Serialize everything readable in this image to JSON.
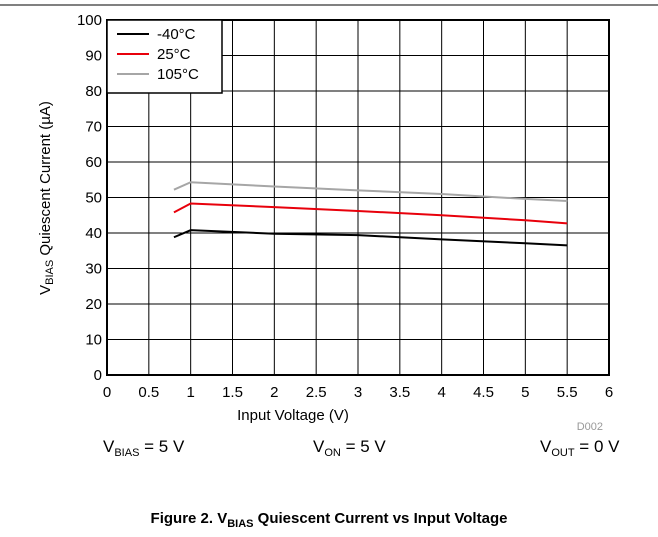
{
  "chart_data": {
    "type": "line",
    "x": [
      0.8,
      1,
      2,
      3,
      4,
      5,
      5.5
    ],
    "series": [
      {
        "name": "-40°C",
        "color": "#000000",
        "values": [
          38.8,
          40.8,
          39.8,
          39.4,
          38.2,
          37.1,
          36.5
        ]
      },
      {
        "name": "25°C",
        "color": "#e8000b",
        "values": [
          45.8,
          48.3,
          47.3,
          46.2,
          45.0,
          43.6,
          42.7
        ]
      },
      {
        "name": "105°C",
        "color": "#a6a6a6",
        "values": [
          52.2,
          54.3,
          53.1,
          52.0,
          51.0,
          49.6,
          49.0
        ]
      }
    ],
    "xlim": [
      0,
      6
    ],
    "xticks": [
      0,
      0.5,
      1,
      1.5,
      2,
      2.5,
      3,
      3.5,
      4,
      4.5,
      5,
      5.5,
      6
    ],
    "ylim": [
      0,
      100
    ],
    "yticks": [
      0,
      10,
      20,
      30,
      40,
      50,
      60,
      70,
      80,
      90,
      100
    ],
    "grid": true,
    "legend": "top-left",
    "x_label": "Input Voltage (V)",
    "y_label": {
      "base": "V",
      "sub": "BIAS",
      "rest": " Quiescent Current (µA)"
    },
    "code": "D002",
    "conditions": [
      {
        "base": "V",
        "sub": "BIAS",
        "rest": " = 5 V"
      },
      {
        "base": "V",
        "sub": "ON",
        "rest": " = 5 V"
      },
      {
        "base": "V",
        "sub": "OUT",
        "rest": " = 0 V"
      }
    ],
    "caption": {
      "base": "Figure 2. V",
      "sub": "BIAS",
      "rest": " Quiescent Current vs Input Voltage"
    }
  }
}
